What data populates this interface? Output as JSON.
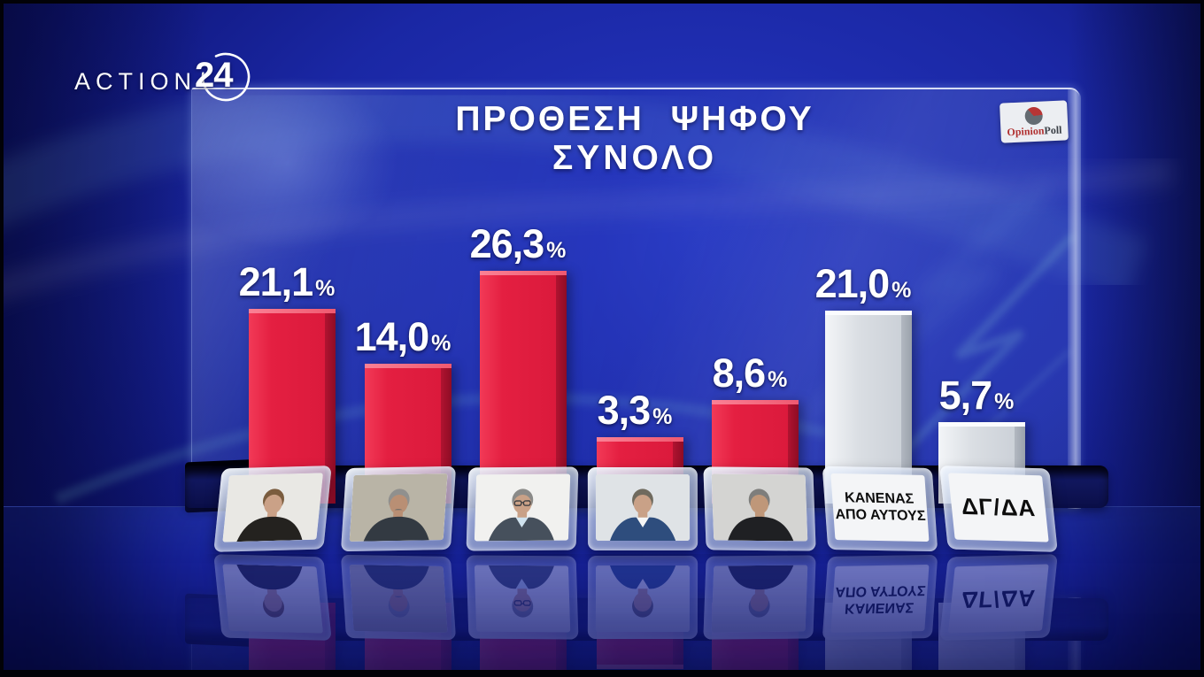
{
  "logo": {
    "action": "ACTION",
    "number": "24"
  },
  "header": {
    "title_line1": "ΠΡΟΘΕΣΗ ΨΗΦΟΥ",
    "title_line2": "ΣΥΝΟΛΟ"
  },
  "badge": {
    "opinion": "Opinion",
    "poll": "Poll"
  },
  "chart_data": {
    "type": "bar",
    "title": "ΠΡΟΘΕΣΗ ΨΗΦΟΥ — ΣΥΝΟΛΟ",
    "unit": "%",
    "decimal_separator": ",",
    "categories": [
      "candidate-1",
      "candidate-2",
      "candidate-3",
      "candidate-4",
      "candidate-5",
      "ΚΑΝΕΝΑΣ ΑΠΟ ΑΥΤΟΥΣ",
      "ΔΓ/ΔΑ"
    ],
    "values": [
      21.1,
      14.0,
      26.3,
      3.3,
      8.6,
      21.0,
      5.7
    ],
    "display_labels": [
      "21,1",
      "14,0",
      "26,3",
      "3,3",
      "8,6",
      "21,0",
      "5,7"
    ],
    "bar_types": [
      "candidate",
      "candidate",
      "candidate",
      "candidate",
      "candidate",
      "neutral",
      "neutral"
    ],
    "bar_palette": {
      "candidate": "#e41f41",
      "neutral": "#dadee3"
    },
    "legend": "none",
    "axes": "none",
    "source_badge": "OpinionPoll"
  },
  "candidates": [
    {
      "id": "candidate-1",
      "photo": {
        "bg": "#e9e8e4",
        "hair": "#7a5c3e",
        "skin": "#caa187",
        "shirt": "#24221f"
      }
    },
    {
      "id": "candidate-2",
      "photo": {
        "bg": "#b9b4a6",
        "hair": "#90908e",
        "skin": "#b98f74",
        "shirt": "#333a42",
        "mustache": true
      }
    },
    {
      "id": "candidate-3",
      "photo": {
        "bg": "#f1f1ef",
        "hair": "#8a8a88",
        "skin": "#c9a187",
        "shirt": "#46505c",
        "collar": "#cfe2ee",
        "glasses": true
      }
    },
    {
      "id": "candidate-4",
      "photo": {
        "bg": "#dfe3e6",
        "hair": "#6f6a5e",
        "skin": "#c9a187",
        "shirt": "#2e4d7d",
        "collar": "#f5f5f5"
      }
    },
    {
      "id": "candidate-5",
      "photo": {
        "bg": "#d4d4d2",
        "hair": "#7e7e7c",
        "skin": "#bf9779",
        "shirt": "#1f2023"
      }
    }
  ],
  "plates": {
    "text_plates": [
      {
        "lines": [
          "ΚΑΝΕΝΑΣ",
          "ΑΠΟ ΑΥΤΟΥΣ"
        ]
      },
      {
        "lines": [
          "ΔΓ/ΔΑ"
        ]
      }
    ]
  }
}
